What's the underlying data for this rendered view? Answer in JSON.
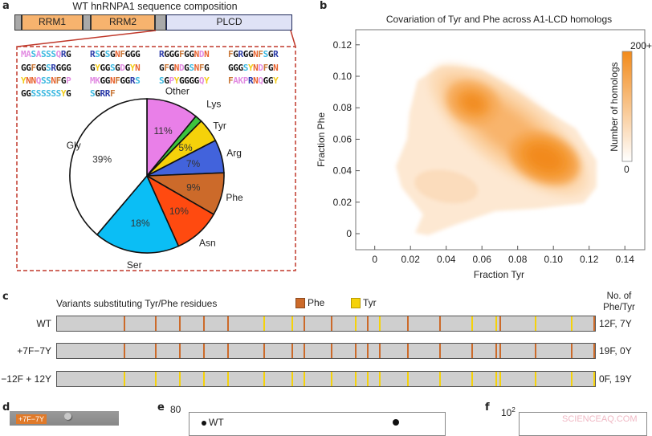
{
  "panels": {
    "a": "a",
    "b": "b",
    "c": "c",
    "d": "d",
    "e": "e",
    "f": "f"
  },
  "panel_a": {
    "title": "WT hnRNPA1 sequence composition",
    "domains": [
      {
        "label": "",
        "type": "linker"
      },
      {
        "label": "RRM1",
        "type": "rrm"
      },
      {
        "label": "",
        "type": "linker"
      },
      {
        "label": "RRM2",
        "type": "rrm"
      },
      {
        "label": "",
        "type": "linker"
      },
      {
        "label": "PLCD",
        "type": "plcd"
      }
    ],
    "sequence_blocks": [
      "MASASSSQRG",
      "RSGSGNFGGG",
      "RGGGFGGNDN",
      "FGRGGNFSGR",
      "GGFGGSRGGG",
      "GYGGSGDGYN",
      "GFGNDGSNFG",
      "GGGSYNDFGN",
      "YNNQSSNFGP",
      "MKGGNFGGRS",
      "SGPYGGGGQY",
      "FAKPRNQGGY",
      "GGSSSSSSYG",
      "SGRRF"
    ],
    "residue_colors": {
      "G": "#111111",
      "S": "#3bb8e0",
      "R": "#2a3aa8",
      "N": "#e8622e",
      "F": "#c9783a",
      "Y": "#f2cc1a",
      "D": "#e28de2",
      "Q": "#e28de2",
      "M": "#e28de2",
      "A": "#e28de2",
      "P": "#e28de2",
      "K": "#e28de2"
    },
    "colors": {
      "rrm": "#f7b36e",
      "linker": "#a9a9a9",
      "plcd": "#dfe2f6",
      "plcd_border": "#1f2a5a",
      "box": "#c0392b"
    }
  },
  "chart_data": [
    {
      "type": "pie",
      "slices": [
        {
          "label": "Other",
          "value": 11,
          "value_label": "11%",
          "color": "#e97fe8"
        },
        {
          "label": "Lys",
          "value": 1.5,
          "value_label": "",
          "color": "#3dc43d"
        },
        {
          "label": "Tyr",
          "value": 5,
          "value_label": "5%",
          "color": "#f5d20a"
        },
        {
          "label": "Arg",
          "value": 7,
          "value_label": "7%",
          "color": "#4263dc"
        },
        {
          "label": "Phe",
          "value": 9,
          "value_label": "9%",
          "color": "#cc6a2a"
        },
        {
          "label": "Asn",
          "value": 10,
          "value_label": "10%",
          "color": "#ff4a10"
        },
        {
          "label": "Ser",
          "value": 18,
          "value_label": "18%",
          "color": "#0bbef5"
        },
        {
          "label": "Gly",
          "value": 39,
          "value_label": "39%",
          "color": "#ffffff"
        }
      ]
    },
    {
      "type": "heatmap",
      "title": "Covariation of Tyr and Phe across A1-LCD homologs",
      "xlabel": "Fraction Tyr",
      "ylabel": "Fraction Phe",
      "xlim": [
        -0.01,
        0.15
      ],
      "ylim": [
        -0.01,
        0.13
      ],
      "xticks": [
        "0",
        "0.02",
        "0.04",
        "0.06",
        "0.08",
        "0.10",
        "0.12",
        "0.14"
      ],
      "xtick_values": [
        0,
        0.02,
        0.04,
        0.06,
        0.08,
        0.1,
        0.12,
        0.14
      ],
      "yticks": [
        "0",
        "0.02",
        "0.04",
        "0.06",
        "0.08",
        "0.10",
        "0.12"
      ],
      "ytick_values": [
        0,
        0.02,
        0.04,
        0.06,
        0.08,
        0.1,
        0.12
      ],
      "modes": [
        {
          "x": 0.055,
          "y": 0.083,
          "level": 0.85
        },
        {
          "x": 0.095,
          "y": 0.048,
          "level": 1.0
        },
        {
          "x": 0.04,
          "y": 0.03,
          "level": 0.25
        }
      ],
      "colorbar": {
        "label": "Number of homologs",
        "max_label": "200+",
        "min_label": "0",
        "color_max": "#f28a1a",
        "color_min": "#ffffff"
      },
      "grid": false
    }
  ],
  "panel_c": {
    "title": "Variants substituting Tyr/Phe residues",
    "legend": [
      {
        "label": "Phe",
        "color": "#cc6a2a"
      },
      {
        "label": "Tyr",
        "color": "#f5d20a"
      }
    ],
    "count_header": "No. of\nPhe/Tyr",
    "variants": [
      {
        "label": "WT",
        "mode": "wt",
        "count": "12F, 7Y"
      },
      {
        "label": "+7F−7Y",
        "mode": "F",
        "count": "19F, 0Y"
      },
      {
        "label": "−12F + 12Y",
        "mode": "Y",
        "count": "0F, 19Y"
      }
    ]
  },
  "panel_d": {
    "tag": "+7F−7Y"
  },
  "panel_e": {
    "ytick_top": "80",
    "legend_wt": "WT"
  },
  "panel_f": {
    "ytick_top": "10",
    "ytick_top_exp": "2"
  },
  "watermark": "SCIENCEAQ.COM"
}
